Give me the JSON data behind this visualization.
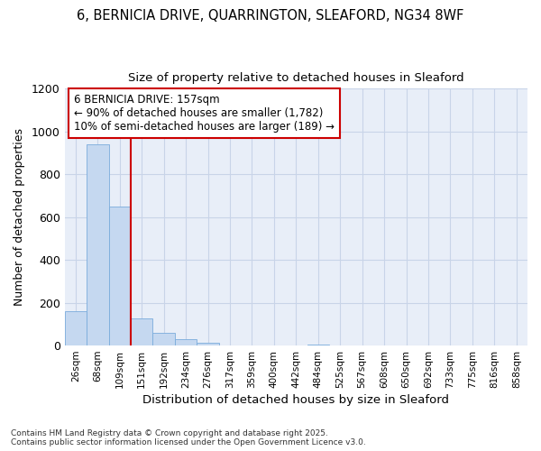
{
  "title_line1": "6, BERNICIA DRIVE, QUARRINGTON, SLEAFORD, NG34 8WF",
  "title_line2": "Size of property relative to detached houses in Sleaford",
  "xlabel": "Distribution of detached houses by size in Sleaford",
  "ylabel": "Number of detached properties",
  "categories": [
    "26sqm",
    "68sqm",
    "109sqm",
    "151sqm",
    "192sqm",
    "234sqm",
    "276sqm",
    "317sqm",
    "359sqm",
    "400sqm",
    "442sqm",
    "484sqm",
    "525sqm",
    "567sqm",
    "608sqm",
    "650sqm",
    "692sqm",
    "733sqm",
    "775sqm",
    "816sqm",
    "858sqm"
  ],
  "values": [
    160,
    940,
    650,
    125,
    60,
    28,
    12,
    0,
    0,
    0,
    0,
    5,
    0,
    0,
    0,
    0,
    0,
    0,
    0,
    0,
    0
  ],
  "bar_color": "#c5d8f0",
  "bar_edge_color": "#7aacdc",
  "vline_x_index": 3,
  "vline_color": "#cc0000",
  "annotation_text": "6 BERNICIA DRIVE: 157sqm\n← 90% of detached houses are smaller (1,782)\n10% of semi-detached houses are larger (189) →",
  "annotation_box_color": "#cc0000",
  "ylim": [
    0,
    1200
  ],
  "yticks": [
    0,
    200,
    400,
    600,
    800,
    1000,
    1200
  ],
  "grid_color": "#c8d4e8",
  "background_color": "#e8eef8",
  "footer_text": "Contains HM Land Registry data © Crown copyright and database right 2025.\nContains public sector information licensed under the Open Government Licence v3.0.",
  "title_fontsize": 10.5,
  "subtitle_fontsize": 9.5,
  "annotation_fontsize": 8.5
}
